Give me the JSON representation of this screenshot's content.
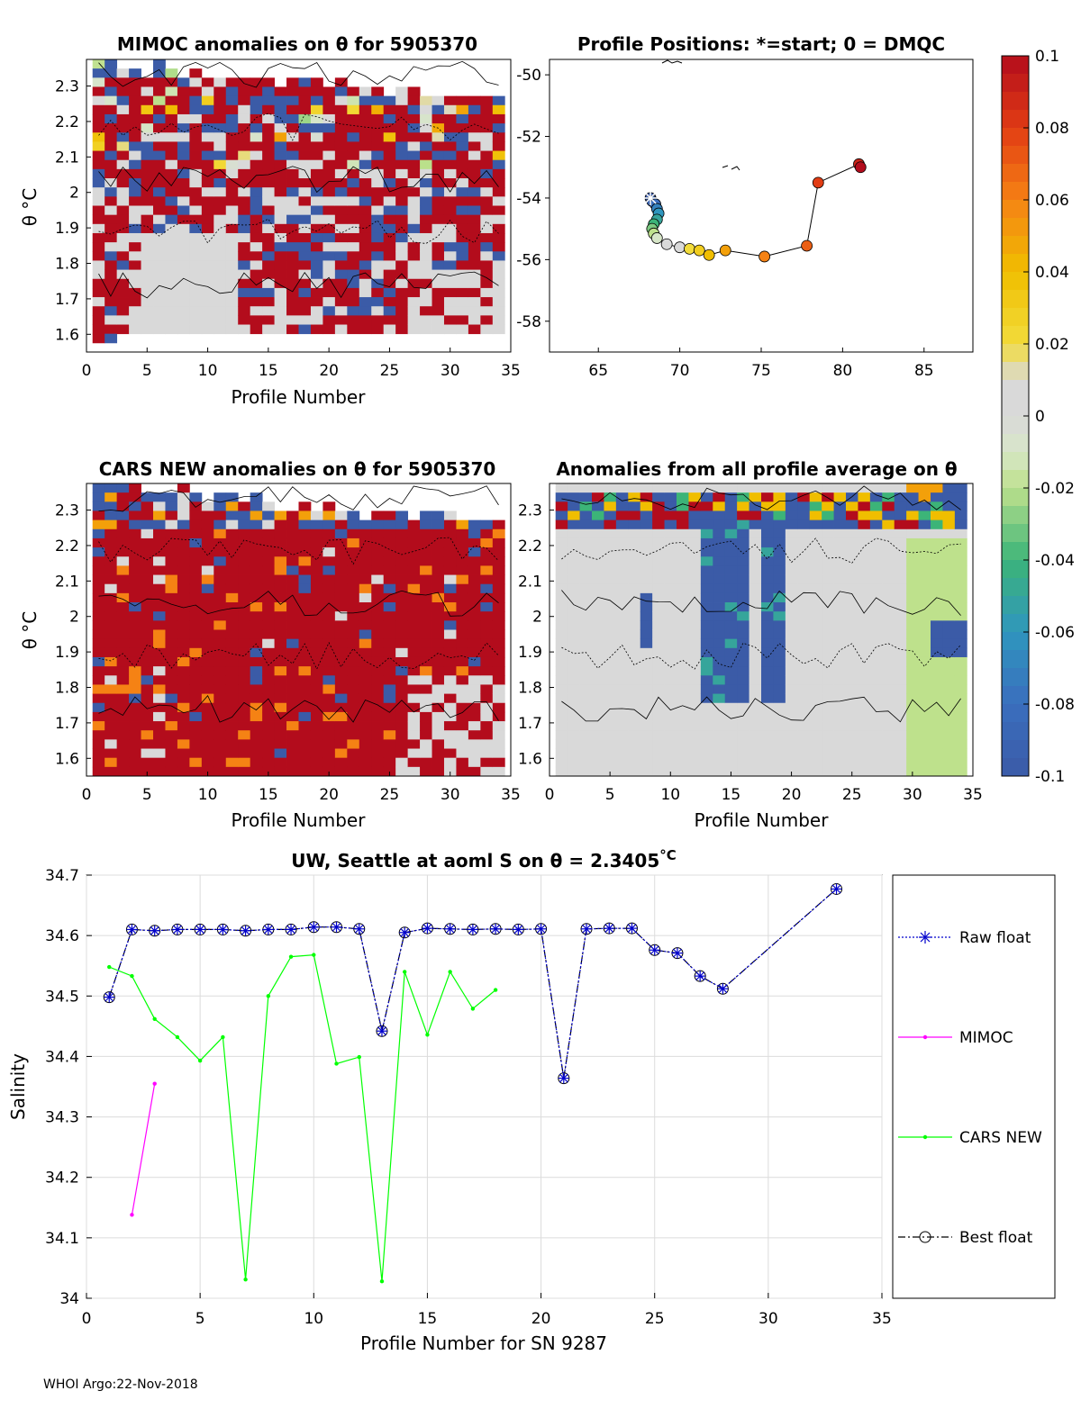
{
  "footer": "WHOI Argo:22-Nov-2018",
  "colors": {
    "red": "#b30c1c",
    "blue": "#3b5ba7",
    "gray": "#d9d9d9",
    "green_line": "#00ff00",
    "magenta": "#ff00ff",
    "navy": "#0000cc"
  },
  "colorbar": {
    "ticks": [
      "0.1",
      "0.08",
      "0.06",
      "0.04",
      "0.02",
      "0",
      "-0.02",
      "-0.04",
      "-0.06",
      "-0.08",
      "-0.1"
    ],
    "range": [
      -0.1,
      0.1
    ]
  },
  "mimoc_panel": {
    "title": "MIMOC anomalies on θ  for 5905370",
    "xlabel": "Profile Number",
    "ylabel": "θ °C",
    "xticks": [
      "0",
      "5",
      "10",
      "15",
      "20",
      "25",
      "30",
      "35"
    ],
    "yticks": [
      "2.3",
      "2.2",
      "2.1",
      "2",
      "1.9",
      "1.8",
      "1.7",
      "1.6"
    ]
  },
  "positions_panel": {
    "title": "Profile Positions: *=start; 0 = DMQC",
    "xticks": [
      "65",
      "70",
      "75",
      "80",
      "85"
    ],
    "yticks": [
      "-50",
      "-52",
      "-54",
      "-56",
      "-58"
    ],
    "track": [
      [
        68.2,
        -54.0
      ],
      [
        68.3,
        -54.1
      ],
      [
        68.5,
        -54.2
      ],
      [
        68.6,
        -54.35
      ],
      [
        68.7,
        -54.5
      ],
      [
        68.6,
        -54.7
      ],
      [
        68.4,
        -54.85
      ],
      [
        68.3,
        -55.0
      ],
      [
        68.4,
        -55.15
      ],
      [
        68.6,
        -55.3
      ],
      [
        69.2,
        -55.5
      ],
      [
        70.0,
        -55.6
      ],
      [
        70.6,
        -55.65
      ],
      [
        71.2,
        -55.7
      ],
      [
        71.8,
        -55.85
      ],
      [
        72.8,
        -55.7
      ],
      [
        75.2,
        -55.9
      ],
      [
        77.8,
        -55.55
      ],
      [
        78.5,
        -53.5
      ],
      [
        81.0,
        -52.9
      ],
      [
        81.1,
        -53.0
      ]
    ]
  },
  "cars_panel": {
    "title": "CARS NEW anomalies on θ for 5905370",
    "xlabel": "Profile Number",
    "ylabel": "θ °C",
    "xticks": [
      "0",
      "5",
      "10",
      "15",
      "20",
      "25",
      "30",
      "35"
    ],
    "yticks": [
      "2.3",
      "2.2",
      "2.1",
      "2",
      "1.9",
      "1.8",
      "1.7",
      "1.6"
    ]
  },
  "avg_panel": {
    "title": "Anomalies from all profile average on θ",
    "xlabel": "Profile Number",
    "xticks": [
      "0",
      "5",
      "10",
      "15",
      "20",
      "25",
      "30",
      "35"
    ]
  },
  "chart_data": {
    "type": "line",
    "title": "UW, Seattle at aoml S on θ = 2.3405",
    "title_unit": "°C",
    "xlabel": "Profile Number for SN 9287",
    "ylabel": "Salinity",
    "xlim": [
      0,
      35
    ],
    "ylim": [
      34.0,
      34.7
    ],
    "xticks": [
      "0",
      "5",
      "10",
      "15",
      "20",
      "25",
      "30",
      "35"
    ],
    "yticks": [
      "34.7",
      "34.6",
      "34.5",
      "34.4",
      "34.3",
      "34.2",
      "34.1",
      "34"
    ],
    "series": [
      {
        "name": "Raw float",
        "x": [
          1,
          2,
          3,
          4,
          5,
          6,
          7,
          8,
          9,
          10,
          11,
          12,
          13,
          14,
          15,
          16,
          17,
          18,
          19,
          20,
          21,
          22,
          23,
          24,
          25,
          26,
          27,
          28,
          33
        ],
        "y": [
          34.498,
          34.61,
          34.608,
          34.61,
          34.61,
          34.61,
          34.608,
          34.61,
          34.61,
          34.614,
          34.614,
          34.611,
          34.442,
          34.605,
          34.612,
          34.611,
          34.61,
          34.611,
          34.61,
          34.611,
          34.364,
          34.611,
          34.612,
          34.612,
          34.576,
          34.571,
          34.533,
          34.512,
          34.677
        ]
      },
      {
        "name": "MIMOC",
        "x": [
          2,
          3
        ],
        "y": [
          34.138,
          34.355
        ]
      },
      {
        "name": "CARS NEW",
        "x": [
          1,
          2,
          3,
          4,
          5,
          6,
          7,
          8,
          9,
          10,
          11,
          12,
          13,
          14,
          15,
          16,
          17,
          18
        ],
        "y": [
          34.548,
          34.533,
          34.462,
          34.432,
          34.393,
          34.432,
          34.031,
          34.5,
          34.565,
          34.568,
          34.388,
          34.399,
          34.028,
          34.54,
          34.436,
          34.54,
          34.479,
          34.51
        ]
      },
      {
        "name": "Best float",
        "x": [
          1,
          2,
          3,
          4,
          5,
          6,
          7,
          8,
          9,
          10,
          11,
          12,
          13,
          14,
          15,
          16,
          17,
          18,
          19,
          20,
          21,
          22,
          23,
          24,
          25,
          26,
          27,
          28,
          33
        ],
        "y": [
          34.498,
          34.61,
          34.608,
          34.61,
          34.61,
          34.61,
          34.608,
          34.61,
          34.61,
          34.614,
          34.614,
          34.611,
          34.442,
          34.605,
          34.612,
          34.611,
          34.61,
          34.611,
          34.61,
          34.611,
          34.364,
          34.611,
          34.612,
          34.612,
          34.576,
          34.571,
          34.533,
          34.512,
          34.677
        ]
      }
    ]
  }
}
